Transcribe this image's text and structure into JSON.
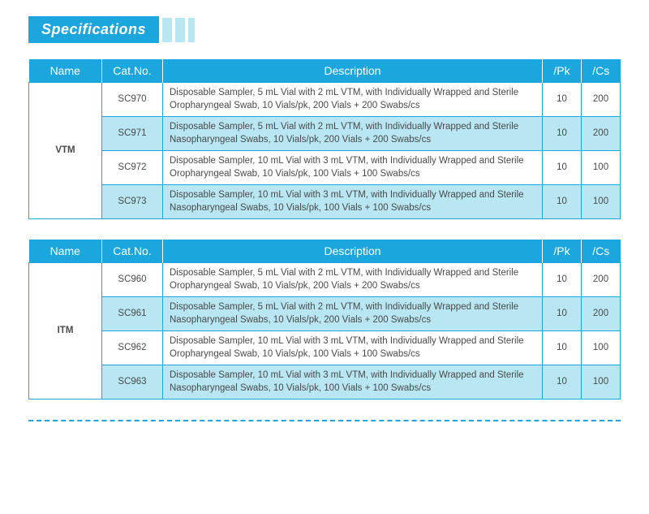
{
  "title": "Specifications",
  "colors": {
    "primary": "#1ba6dd",
    "alt_row_bg": "#b8e6f2",
    "text": "#4a4a4a",
    "white": "#ffffff"
  },
  "stripes": [
    {
      "width": 12,
      "color": "#b8e6f2"
    },
    {
      "width": 12,
      "color": "#b8e6f2"
    },
    {
      "width": 8,
      "color": "#b8e6f2"
    }
  ],
  "headers": {
    "name": "Name",
    "cat": "Cat.No.",
    "desc": "Description",
    "pk": "/Pk",
    "cs": "/Cs"
  },
  "tables": [
    {
      "name": "VTM",
      "rows": [
        {
          "cat": "SC970",
          "desc": "Disposable Sampler, 5 mL Vial with 2 mL VTM, with Individually Wrapped and Sterile Oropharyngeal Swab, 10 Vials/pk, 200 Vials + 200 Swabs/cs",
          "pk": "10",
          "cs": "200"
        },
        {
          "cat": "SC971",
          "desc": "Disposable Sampler, 5 mL Vial with 2 mL VTM, with Individually Wrapped and Sterile Nasopharyngeal Swabs, 10 Vials/pk, 200 Vials + 200 Swabs/cs",
          "pk": "10",
          "cs": "200"
        },
        {
          "cat": "SC972",
          "desc": "Disposable Sampler, 10 mL Vial with 3 mL VTM, with Individually Wrapped and Sterile Oropharyngeal Swab, 10 Vials/pk, 100 Vials + 100 Swabs/cs",
          "pk": "10",
          "cs": "100"
        },
        {
          "cat": "SC973",
          "desc": "Disposable Sampler, 10 mL Vial with 3 mL VTM, with Individually Wrapped and Sterile Nasopharyngeal Swabs, 10 Vials/pk, 100 Vials + 100 Swabs/cs",
          "pk": "10",
          "cs": "100"
        }
      ]
    },
    {
      "name": "ITM",
      "rows": [
        {
          "cat": "SC960",
          "desc": "Disposable Sampler, 5 mL Vial with 2 mL VTM, with Individually Wrapped and Sterile Oropharyngeal Swab, 10 Vials/pk, 200 Vials + 200 Swabs/cs",
          "pk": "10",
          "cs": "200"
        },
        {
          "cat": "SC961",
          "desc": "Disposable Sampler, 5 mL Vial with 2 mL VTM, with Individually Wrapped and Sterile Nasopharyngeal Swabs, 10 Vials/pk, 200 Vials + 200 Swabs/cs",
          "pk": "10",
          "cs": "200"
        },
        {
          "cat": "SC962",
          "desc": "Disposable Sampler, 10 mL Vial with 3 mL VTM, with Individually Wrapped and Sterile Oropharyngeal Swab, 10 Vials/pk, 100 Vials + 100 Swabs/cs",
          "pk": "10",
          "cs": "100"
        },
        {
          "cat": "SC963",
          "desc": "Disposable Sampler, 10 mL Vial with 3 mL VTM, with Individually Wrapped and Sterile Nasopharyngeal Swabs, 10 Vials/pk, 100 Vials + 100 Swabs/cs",
          "pk": "10",
          "cs": "100"
        }
      ]
    }
  ]
}
